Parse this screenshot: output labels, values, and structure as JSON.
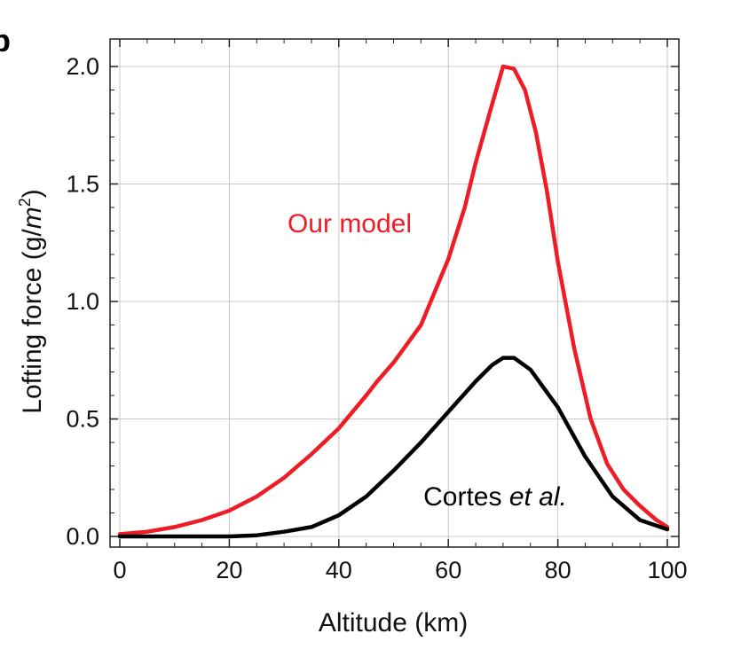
{
  "chart_data": {
    "type": "line",
    "panel_label": "b",
    "xlabel": "Altitude (km)",
    "ylabel_main": "Lofting force (g/",
    "ylabel_unit_italic": "m",
    "ylabel_sup": "2",
    "ylabel_close": ")",
    "xlim": [
      0,
      100
    ],
    "ylim": [
      0.0,
      2.0
    ],
    "xticks": [
      0,
      20,
      40,
      60,
      80,
      100
    ],
    "xtick_labels": [
      "0",
      "20",
      "40",
      "60",
      "80",
      "100"
    ],
    "yticks": [
      0.0,
      0.5,
      1.0,
      1.5,
      2.0
    ],
    "ytick_labels": [
      "0.0",
      "0.5",
      "1.0",
      "1.5",
      "2.0"
    ],
    "grid": true,
    "legend": "none",
    "series": [
      {
        "color": "#ee1c25",
        "x": [
          0,
          5,
          10,
          15,
          20,
          25,
          30,
          35,
          40,
          45,
          47,
          50,
          55,
          60,
          63,
          65,
          68,
          70,
          72,
          74,
          76,
          78,
          80,
          83,
          86,
          89,
          92,
          95,
          98,
          100
        ],
        "y": [
          0.01,
          0.02,
          0.04,
          0.07,
          0.11,
          0.17,
          0.25,
          0.35,
          0.46,
          0.6,
          0.66,
          0.74,
          0.9,
          1.18,
          1.4,
          1.59,
          1.84,
          2.0,
          1.99,
          1.9,
          1.72,
          1.47,
          1.17,
          0.8,
          0.5,
          0.31,
          0.2,
          0.13,
          0.07,
          0.04
        ]
      },
      {
        "color": "#000000",
        "x": [
          0,
          10,
          20,
          25,
          30,
          35,
          40,
          45,
          50,
          55,
          60,
          65,
          68,
          70,
          72,
          75,
          80,
          85,
          90,
          95,
          100
        ],
        "y": [
          0.0,
          0.0,
          0.0,
          0.005,
          0.02,
          0.04,
          0.09,
          0.17,
          0.28,
          0.4,
          0.53,
          0.66,
          0.73,
          0.76,
          0.76,
          0.71,
          0.55,
          0.34,
          0.17,
          0.07,
          0.03
        ]
      }
    ],
    "annotations": [
      {
        "text": "Our model",
        "color": "#ee1c25"
      },
      {
        "text_main": "Cortes ",
        "text_italic": "et al.",
        "color": "#000000"
      }
    ]
  }
}
